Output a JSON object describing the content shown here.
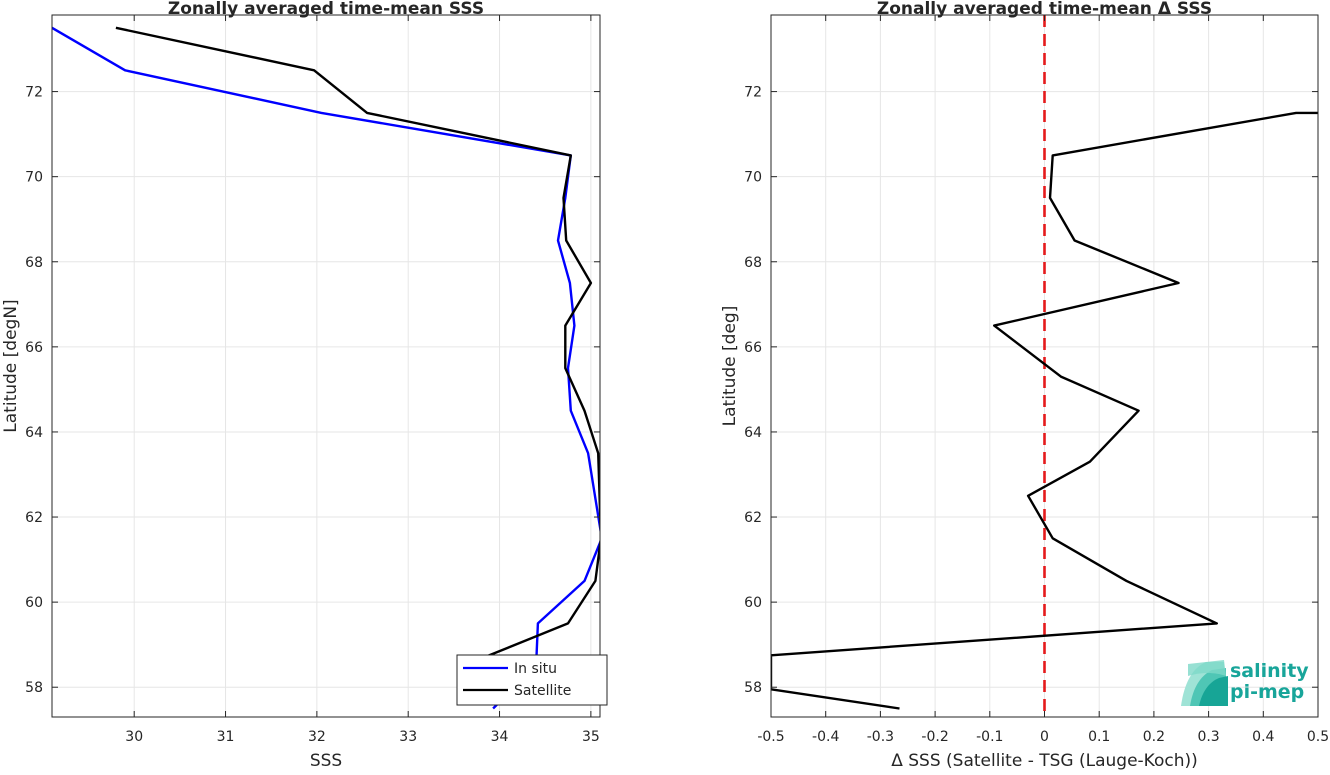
{
  "chart_data": [
    {
      "type": "line",
      "title": "Zonally averaged time-mean SSS",
      "xlabel": "SSS",
      "ylabel": "Latitude [degN]",
      "xlim": [
        29.1,
        35.1
      ],
      "ylim": [
        57.3,
        73.8
      ],
      "xticks": [
        30,
        31,
        32,
        33,
        34,
        35
      ],
      "yticks": [
        58,
        60,
        62,
        64,
        66,
        68,
        70,
        72
      ],
      "grid": true,
      "legend": "bottom-right",
      "series": [
        {
          "name": "In situ",
          "color": "#0000ff",
          "x": [
            29.1,
            29.9,
            32.05,
            34.78,
            34.72,
            34.64,
            34.77,
            34.82,
            34.75,
            34.78,
            34.97,
            35.12,
            34.93,
            34.42,
            34.4,
            33.93
          ],
          "y": [
            73.5,
            72.5,
            71.5,
            70.5,
            69.5,
            68.5,
            67.5,
            66.5,
            65.5,
            64.5,
            63.5,
            61.5,
            60.5,
            59.5,
            58.5,
            57.5
          ]
        },
        {
          "name": "Satellite",
          "color": "#000000",
          "x": [
            29.8,
            31.97,
            32.55,
            34.78,
            34.7,
            34.73,
            35.0,
            34.72,
            34.72,
            34.93,
            35.08,
            35.11,
            35.05,
            34.75,
            33.6
          ],
          "y": [
            73.5,
            72.5,
            71.5,
            70.5,
            69.5,
            68.5,
            67.5,
            66.5,
            65.5,
            64.5,
            63.5,
            61.5,
            60.5,
            59.5,
            58.5
          ]
        }
      ]
    },
    {
      "type": "line",
      "title": "Zonally averaged time-mean Δ SSS",
      "xlabel": "Δ SSS (Satellite - TSG (Lauge-Koch))",
      "ylabel": "Latitude [deg]",
      "xlim": [
        -0.5,
        0.5
      ],
      "ylim": [
        57.3,
        73.8
      ],
      "xticks": [
        -0.5,
        -0.4,
        -0.3,
        -0.2,
        -0.1,
        0,
        0.1,
        0.2,
        0.3,
        0.4,
        0.5
      ],
      "yticks": [
        58,
        60,
        62,
        64,
        66,
        68,
        70,
        72
      ],
      "grid": true,
      "reference_line": {
        "x": 0,
        "color": "#e41a1c",
        "style": "dashed"
      },
      "series": [
        {
          "color": "#000000",
          "x": [
            0.5,
            0.46,
            0.015,
            0.01,
            0.055,
            0.245,
            -0.092,
            0.03,
            0.172,
            0.083,
            -0.03,
            0.015,
            0.15,
            0.315,
            -0.5,
            -0.5,
            -0.265
          ],
          "y": [
            71.5,
            71.5,
            70.5,
            69.5,
            68.5,
            67.5,
            66.5,
            65.3,
            64.5,
            63.3,
            62.5,
            61.5,
            60.5,
            59.5,
            58.75,
            57.95,
            57.5
          ]
        }
      ]
    }
  ],
  "logo": {
    "line1": "salinity",
    "line2": "pi-mep",
    "color": "#18a59a"
  }
}
